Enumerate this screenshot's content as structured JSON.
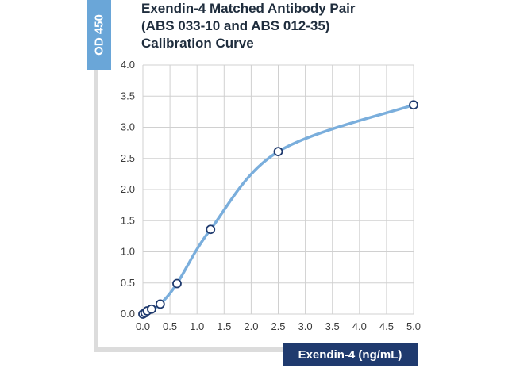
{
  "chart_data": {
    "type": "line",
    "title_lines": [
      "Exendin-4 Matched Antibody Pair",
      "(ABS 033-10 and ABS 012-35)",
      "Calibration Curve"
    ],
    "ylabel": "OD 450",
    "xlabel": "Exendin-4 (ng/mL)",
    "xlim": [
      0,
      5
    ],
    "ylim": [
      0,
      4
    ],
    "xticks": [
      "0.0",
      "0.5",
      "1.0",
      "1.5",
      "2.0",
      "2.5",
      "3.0",
      "3.5",
      "4.0",
      "4.5",
      "5.0"
    ],
    "yticks": [
      "0.0",
      "0.5",
      "1.0",
      "1.5",
      "2.0",
      "2.5",
      "3.0",
      "3.5",
      "4.0"
    ],
    "grid": true,
    "series": [
      {
        "x": [
          0.0,
          0.04,
          0.08,
          0.16,
          0.32,
          0.63,
          1.25,
          2.5,
          5.0
        ],
        "y": [
          0.0,
          0.02,
          0.05,
          0.08,
          0.16,
          0.49,
          1.36,
          2.61,
          3.36
        ]
      }
    ],
    "colors": {
      "line": "#7aaedc",
      "marker_edge": "#1f3a6e",
      "marker_fill": "#ffffff",
      "grid": "#d0d0d0"
    }
  }
}
